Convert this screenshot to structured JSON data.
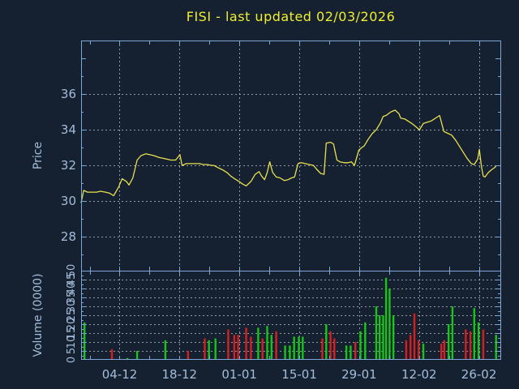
{
  "title": "FISI - last updated 02/03/2026",
  "colors": {
    "background": "#152030",
    "title": "#f0ee30",
    "axis": "#7ea6d4",
    "tick_label": "#a4bdda",
    "grid": "#b0b8c0",
    "price_line": "#e8e14f",
    "volume_up": "#17c417",
    "volume_down": "#d42020"
  },
  "chart_data": [
    {
      "type": "line",
      "title": "FISI - last updated 02/03/2026",
      "ylabel": "Price",
      "ylim": [
        26.1,
        39.0
      ],
      "yticks": [
        28,
        30,
        32,
        34,
        36
      ],
      "grid": true,
      "x_unit": "days along shared time axis (14 days between labeled ticks)",
      "xlim_days": [
        0,
        98
      ],
      "xtick_days": [
        9,
        23,
        37,
        51,
        65,
        79,
        93
      ],
      "xticklabels": [
        "04-12",
        "18-12",
        "01-01",
        "15-01",
        "29-01",
        "12-02",
        "26-02"
      ],
      "series": [
        {
          "name": "price",
          "points": [
            [
              0,
              29.9
            ],
            [
              0.6,
              30.6
            ],
            [
              1.5,
              30.5
            ],
            [
              2.5,
              30.5
            ],
            [
              3.6,
              30.5
            ],
            [
              4.5,
              30.55
            ],
            [
              5.7,
              30.5
            ],
            [
              6.6,
              30.45
            ],
            [
              7.6,
              30.3
            ],
            [
              8.7,
              30.75
            ],
            [
              9.6,
              31.25
            ],
            [
              10.6,
              31.1
            ],
            [
              11.2,
              30.9
            ],
            [
              12.1,
              31.3
            ],
            [
              13.1,
              32.3
            ],
            [
              14,
              32.55
            ],
            [
              15.1,
              32.65
            ],
            [
              16.1,
              32.6
            ],
            [
              17,
              32.55
            ],
            [
              18.2,
              32.45
            ],
            [
              19.1,
              32.4
            ],
            [
              20.1,
              32.35
            ],
            [
              21,
              32.3
            ],
            [
              22.1,
              32.3
            ],
            [
              23.1,
              32.6
            ],
            [
              23.6,
              32.0
            ],
            [
              24.6,
              32.1
            ],
            [
              25.5,
              32.1
            ],
            [
              26.5,
              32.1
            ],
            [
              27.6,
              32.1
            ],
            [
              28.6,
              32.05
            ],
            [
              29.5,
              32.05
            ],
            [
              30.5,
              32.0
            ],
            [
              31,
              32.0
            ],
            [
              32.2,
              31.85
            ],
            [
              33.1,
              31.75
            ],
            [
              34.1,
              31.6
            ],
            [
              35,
              31.4
            ],
            [
              35.9,
              31.25
            ],
            [
              36.9,
              31.1
            ],
            [
              37.8,
              30.95
            ],
            [
              38.6,
              30.85
            ],
            [
              39.7,
              31.1
            ],
            [
              40.7,
              31.5
            ],
            [
              41.6,
              31.65
            ],
            [
              42.2,
              31.4
            ],
            [
              42.9,
              31.2
            ],
            [
              43.5,
              31.6
            ],
            [
              44.1,
              32.2
            ],
            [
              44.8,
              31.6
            ],
            [
              45.6,
              31.35
            ],
            [
              46.5,
              31.3
            ],
            [
              47.5,
              31.15
            ],
            [
              48.4,
              31.2
            ],
            [
              49.2,
              31.3
            ],
            [
              49.9,
              31.35
            ],
            [
              50.7,
              32.1
            ],
            [
              51.5,
              32.15
            ],
            [
              52.4,
              32.1
            ],
            [
              53.3,
              32.05
            ],
            [
              54.3,
              32.0
            ],
            [
              55,
              31.8
            ],
            [
              56,
              31.55
            ],
            [
              56.8,
              31.5
            ],
            [
              57.3,
              33.25
            ],
            [
              58.3,
              33.3
            ],
            [
              59,
              33.2
            ],
            [
              59.8,
              32.3
            ],
            [
              60.5,
              32.2
            ],
            [
              61.5,
              32.15
            ],
            [
              62.4,
              32.15
            ],
            [
              63.2,
              32.2
            ],
            [
              63.9,
              32.0
            ],
            [
              64.9,
              32.85
            ],
            [
              65.6,
              33.0
            ],
            [
              66.2,
              33.1
            ],
            [
              67.2,
              33.5
            ],
            [
              68.1,
              33.8
            ],
            [
              69,
              34.0
            ],
            [
              70,
              34.4
            ],
            [
              70.6,
              34.75
            ],
            [
              71.3,
              34.8
            ],
            [
              72.4,
              35.0
            ],
            [
              73.4,
              35.1
            ],
            [
              74.3,
              34.9
            ],
            [
              74.7,
              34.65
            ],
            [
              75.7,
              34.6
            ],
            [
              77,
              34.4
            ],
            [
              77.6,
              34.3
            ],
            [
              79.1,
              34.0
            ],
            [
              80,
              34.35
            ],
            [
              81.9,
              34.5
            ],
            [
              83.8,
              34.8
            ],
            [
              84.8,
              33.9
            ],
            [
              85.7,
              33.8
            ],
            [
              86.6,
              33.7
            ],
            [
              87.6,
              33.4
            ],
            [
              88.9,
              32.9
            ],
            [
              90.2,
              32.4
            ],
            [
              91.2,
              32.1
            ],
            [
              91.9,
              32.05
            ],
            [
              92.7,
              32.35
            ],
            [
              93.1,
              32.9
            ],
            [
              93.6,
              31.9
            ],
            [
              94,
              31.4
            ],
            [
              94.4,
              31.35
            ],
            [
              95.2,
              31.6
            ],
            [
              95.9,
              31.75
            ],
            [
              96.5,
              31.85
            ],
            [
              97,
              31.95
            ]
          ]
        }
      ]
    },
    {
      "type": "bar",
      "ylabel": "Volume (0000)",
      "ylim": [
        0,
        50
      ],
      "yticks": [
        0,
        5,
        10,
        15,
        20,
        25,
        30,
        35,
        40,
        45,
        50
      ],
      "grid": true,
      "bar_direction_colors": {
        "u": "volume_up",
        "d": "volume_down"
      },
      "bars": [
        [
          0.8,
          21,
          "u"
        ],
        [
          7.2,
          6,
          "d"
        ],
        [
          10.8,
          1,
          "u"
        ],
        [
          13.1,
          5,
          "u"
        ],
        [
          19.7,
          11,
          "u"
        ],
        [
          25,
          5,
          "d"
        ],
        [
          28.9,
          12,
          "d"
        ],
        [
          29.9,
          11,
          "u"
        ],
        [
          31.4,
          12,
          "u"
        ],
        [
          34.4,
          17,
          "d"
        ],
        [
          35.8,
          14,
          "d"
        ],
        [
          36.7,
          14,
          "d"
        ],
        [
          38.6,
          18,
          "d"
        ],
        [
          39.7,
          13,
          "d"
        ],
        [
          41.4,
          18,
          "u"
        ],
        [
          42.4,
          12,
          "d"
        ],
        [
          43.5,
          19,
          "u"
        ],
        [
          44.5,
          14,
          "u"
        ],
        [
          45.6,
          16,
          "d"
        ],
        [
          47.7,
          8,
          "u"
        ],
        [
          48.8,
          8,
          "u"
        ],
        [
          49.8,
          13,
          "u"
        ],
        [
          50.9,
          13,
          "u"
        ],
        [
          51.8,
          13,
          "u"
        ],
        [
          56.4,
          12,
          "d"
        ],
        [
          57.3,
          20,
          "u"
        ],
        [
          58.3,
          16,
          "d"
        ],
        [
          59.2,
          12,
          "d"
        ],
        [
          62,
          8,
          "u"
        ],
        [
          63,
          8,
          "u"
        ],
        [
          64.1,
          10,
          "d"
        ],
        [
          65.3,
          16,
          "u"
        ],
        [
          66.4,
          21,
          "u"
        ],
        [
          69,
          30,
          "u"
        ],
        [
          69.8,
          25,
          "u"
        ],
        [
          70.6,
          25,
          "u"
        ],
        [
          71.3,
          46,
          "u"
        ],
        [
          72.1,
          40,
          "u"
        ],
        [
          73,
          25,
          "u"
        ],
        [
          76,
          11,
          "d"
        ],
        [
          77,
          14,
          "d"
        ],
        [
          77.9,
          26,
          "d"
        ],
        [
          78.9,
          11,
          "d"
        ],
        [
          80,
          9,
          "u"
        ],
        [
          84.2,
          9,
          "d"
        ],
        [
          84.9,
          11,
          "d"
        ],
        [
          85.9,
          20,
          "u"
        ],
        [
          86.8,
          30,
          "u"
        ],
        [
          89.9,
          17,
          "d"
        ],
        [
          91,
          16,
          "d"
        ],
        [
          91.9,
          29,
          "u"
        ],
        [
          92.9,
          21,
          "u"
        ],
        [
          94,
          17,
          "d"
        ],
        [
          97,
          14,
          "u"
        ]
      ]
    }
  ]
}
